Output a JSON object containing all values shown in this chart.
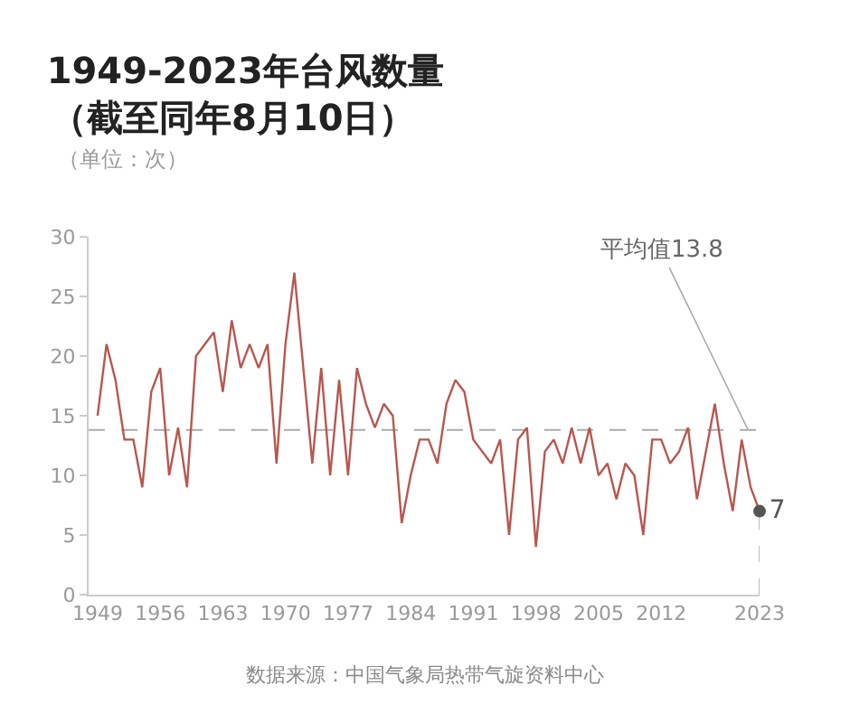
{
  "chart_data": {
    "type": "line",
    "title": "1949-2023年台风数量",
    "subtitle": "（截至同年8月10日）",
    "ylabel": "（单位：次）",
    "annotations": [
      "数据来源：中国气象局热带气旋资料中心"
    ],
    "x": [
      1949,
      1950,
      1951,
      1952,
      1953,
      1954,
      1955,
      1956,
      1957,
      1958,
      1959,
      1960,
      1961,
      1962,
      1963,
      1964,
      1965,
      1966,
      1967,
      1968,
      1969,
      1970,
      1971,
      1972,
      1973,
      1974,
      1975,
      1976,
      1977,
      1978,
      1979,
      1980,
      1981,
      1982,
      1983,
      1984,
      1985,
      1986,
      1987,
      1988,
      1989,
      1990,
      1991,
      1992,
      1993,
      1994,
      1995,
      1996,
      1997,
      1998,
      1999,
      2000,
      2001,
      2002,
      2003,
      2004,
      2005,
      2006,
      2007,
      2008,
      2009,
      2010,
      2011,
      2012,
      2013,
      2014,
      2015,
      2016,
      2017,
      2018,
      2019,
      2020,
      2021,
      2022,
      2023
    ],
    "series": [
      {
        "color": "#b8574f",
        "values": [
          15,
          21,
          18,
          13,
          13,
          9,
          17,
          19,
          10,
          14,
          9,
          20,
          21,
          22,
          17,
          23,
          19,
          21,
          19,
          21,
          11,
          21,
          27,
          19,
          11,
          19,
          10,
          18,
          10,
          19,
          16,
          14,
          16,
          15,
          6,
          10,
          13,
          13,
          11,
          16,
          18,
          17,
          13,
          12,
          11,
          13,
          5,
          13,
          14,
          4,
          12,
          13,
          11,
          14,
          11,
          14,
          10,
          11,
          8,
          11,
          10,
          5,
          13,
          13,
          11,
          12,
          14,
          8,
          12,
          16,
          11,
          7,
          13,
          9,
          7
        ]
      },
      {
        "type": "scatter",
        "color": "#555555",
        "marker": "circle",
        "x": [
          2023
        ],
        "values": [
          7
        ],
        "value_labels": [
          "7"
        ]
      }
    ],
    "xlim": [
      1948,
      2023
    ],
    "xticks": [
      1949,
      1956,
      1963,
      1970,
      1977,
      1984,
      1991,
      1998,
      2005,
      2012,
      2023
    ],
    "ylim": [
      0,
      30
    ],
    "yticks": [
      0,
      5,
      10,
      15,
      20,
      25,
      30
    ],
    "ref_lines": [
      {
        "axis": "y",
        "value": 13.8,
        "label": "平均值13.8",
        "color": "#aaaaaa",
        "line_style": "dashed"
      },
      {
        "axis": "x",
        "value": 2023,
        "color": "#bbbbbb",
        "line_style": "dashed"
      }
    ]
  }
}
